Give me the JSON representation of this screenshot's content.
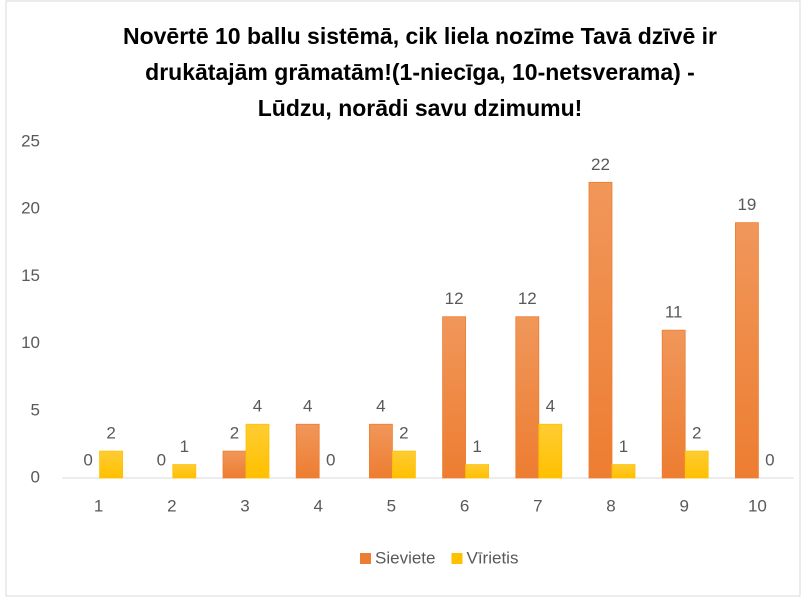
{
  "chart_data": {
    "type": "bar",
    "title": "Novērtē 10 ballu sistēmā, cik liela nozīme Tavā dzīvē ir drukātajām grāmatām!(1-niecīga, 10-netsverama) - Lūdzu, norādi savu dzimumu!",
    "categories": [
      "1",
      "2",
      "3",
      "4",
      "5",
      "6",
      "7",
      "8",
      "9",
      "10"
    ],
    "series": [
      {
        "name": "Sieviete",
        "color": "#ed7d31",
        "values": [
          0,
          0,
          2,
          4,
          4,
          12,
          12,
          22,
          11,
          19
        ]
      },
      {
        "name": "Vīrietis",
        "color": "#ffc000",
        "values": [
          2,
          1,
          4,
          0,
          2,
          1,
          4,
          1,
          2,
          0
        ]
      }
    ],
    "ylim": [
      0,
      25
    ],
    "yticks": [
      0,
      5,
      10,
      15,
      20,
      25
    ],
    "grid": false,
    "legend": "bottom"
  }
}
